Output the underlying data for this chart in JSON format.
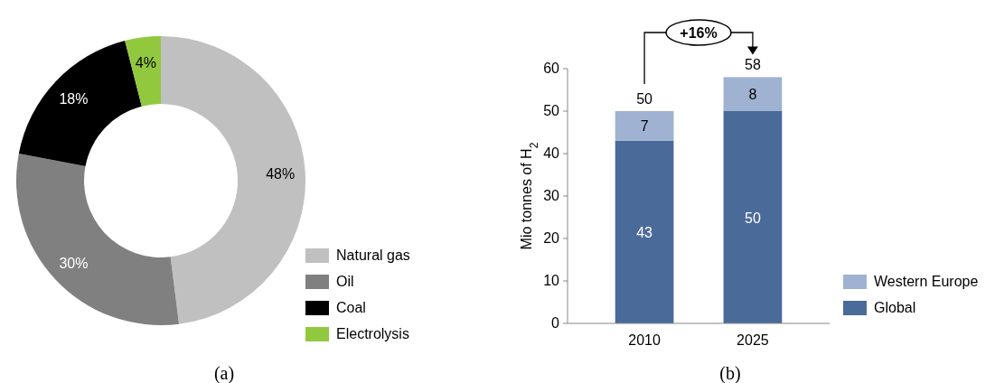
{
  "chart_data": [
    {
      "type": "donut",
      "categories": [
        "Natural gas",
        "Oil",
        "Coal",
        "Electrolysis"
      ],
      "values": [
        48,
        30,
        18,
        4
      ],
      "colors": [
        "#c0c0c0",
        "#808080",
        "#000000",
        "#92c83e"
      ],
      "value_labels": [
        "48%",
        "30%",
        "18%",
        "4%"
      ],
      "legend": "bottom right",
      "annotations": [
        "(a)"
      ]
    },
    {
      "type": "bar",
      "categories": [
        "2010",
        "2025"
      ],
      "stacked": true,
      "series": [
        {
          "name": "Global",
          "color": "#4a6a9a",
          "values": [
            43,
            50
          ]
        },
        {
          "name": "Western Europe",
          "color": "#9fb2d2",
          "values": [
            7,
            8
          ]
        }
      ],
      "ylim": [
        0,
        60
      ],
      "yticks": [
        0,
        10,
        20,
        30,
        40,
        50,
        60
      ],
      "ylabel": "Mio tonnes of H$_{2}$",
      "data_labels": true,
      "totals": [
        "50",
        "58"
      ],
      "legend": "bottom right",
      "annotations": [
        "+16%",
        "(b)"
      ]
    }
  ]
}
